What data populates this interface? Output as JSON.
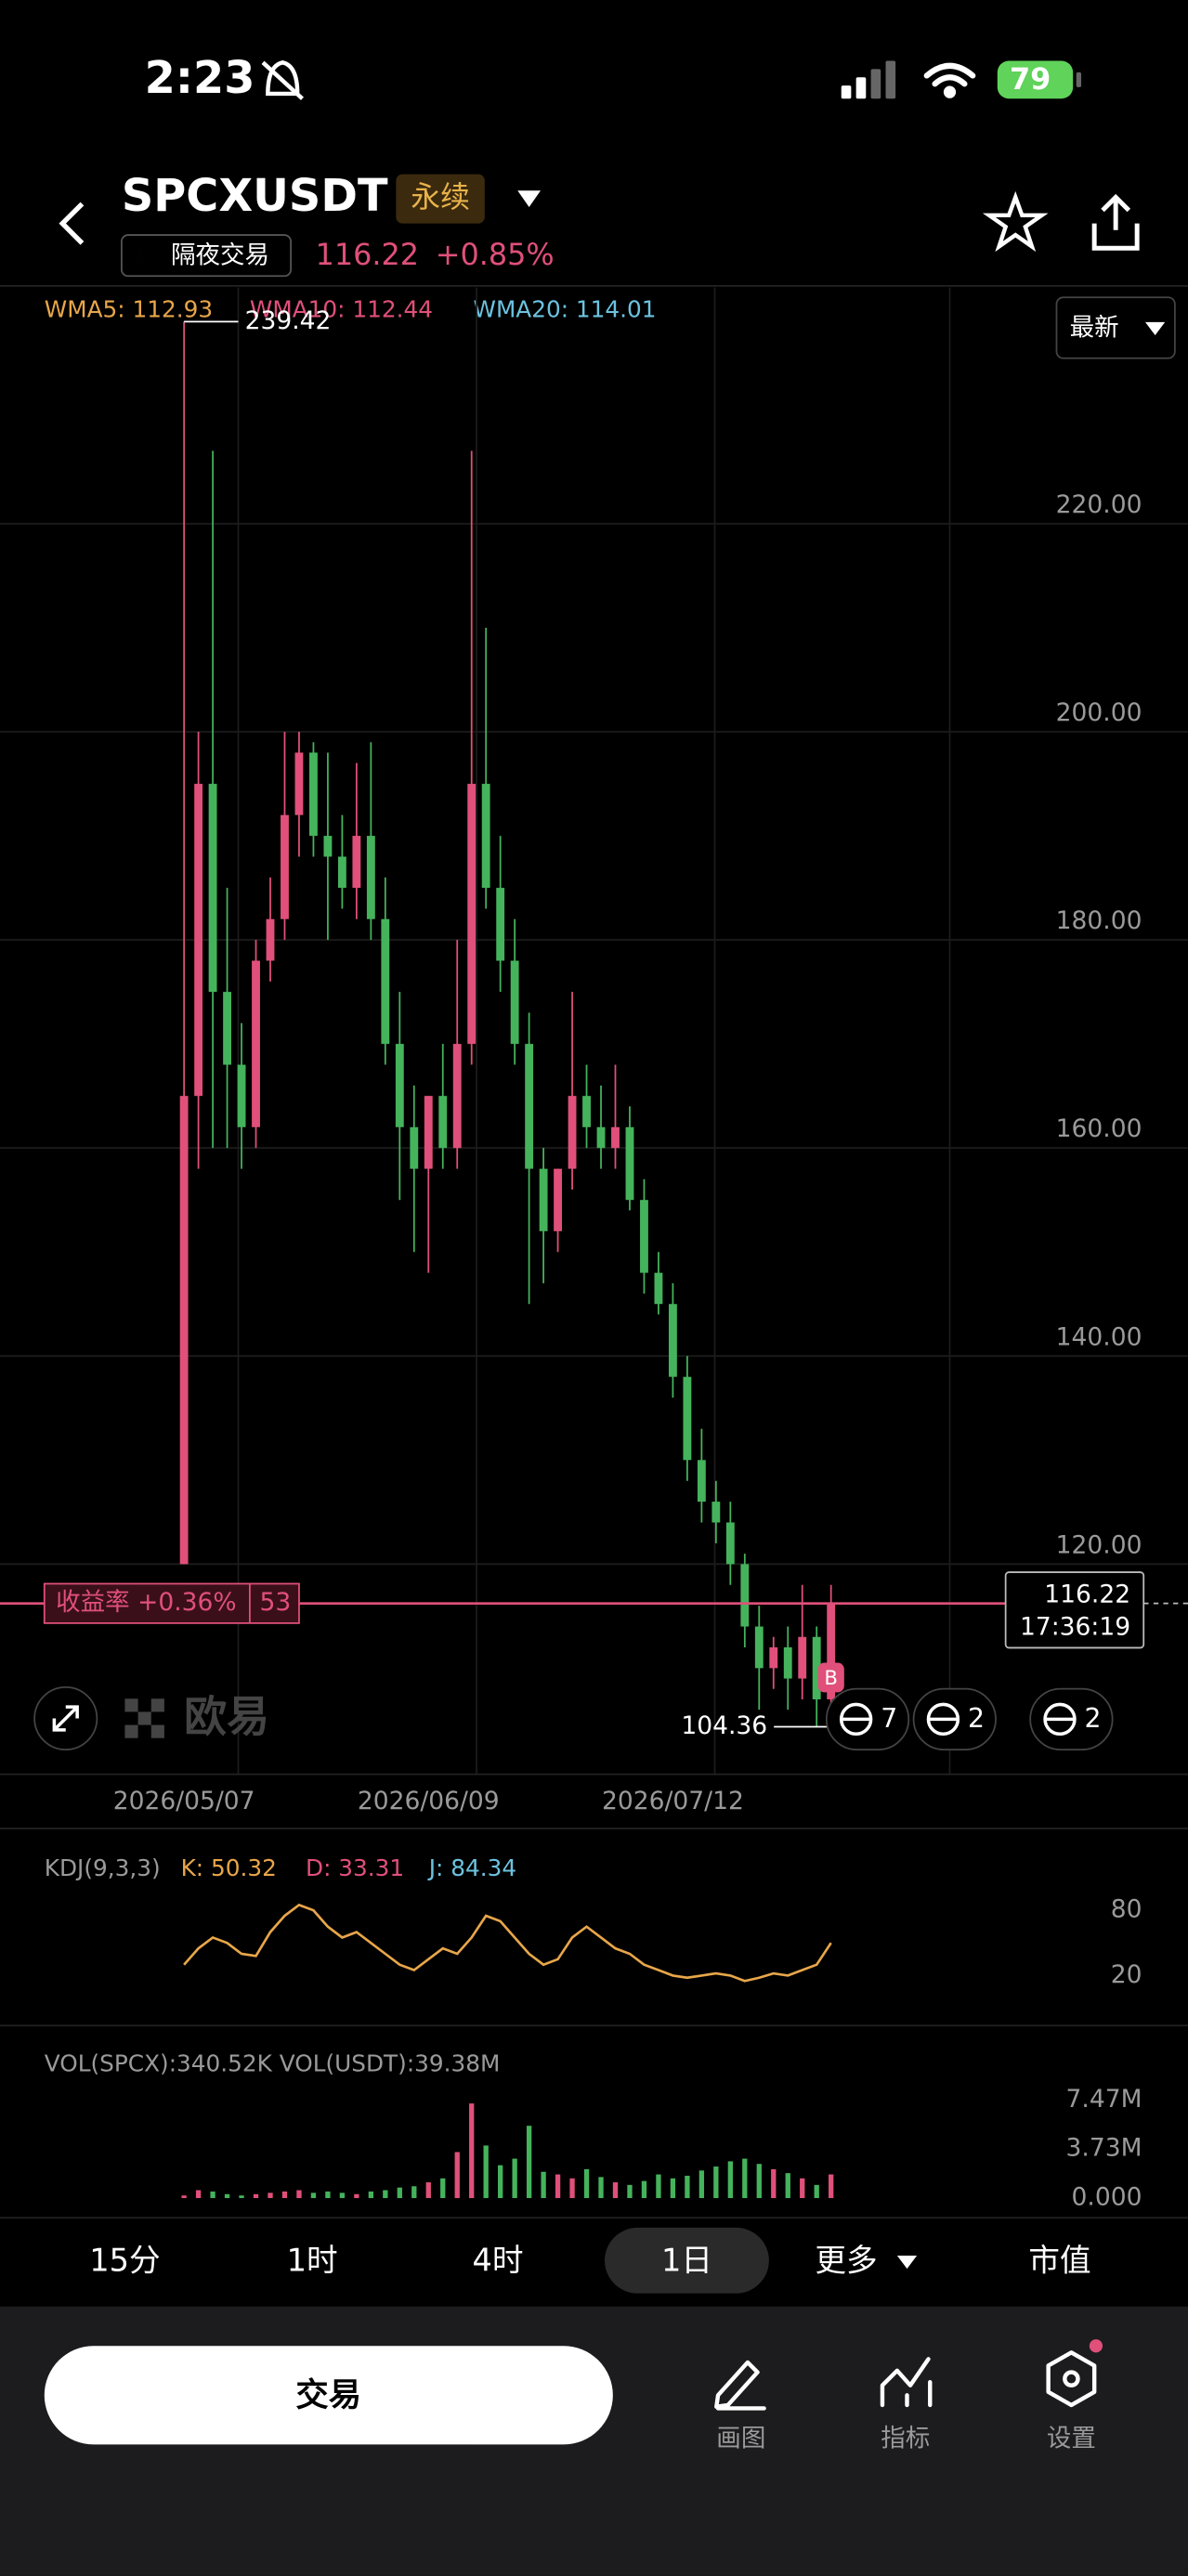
{
  "status_bar": {
    "time": "2:23",
    "battery": "79"
  },
  "header": {
    "symbol": "SPCXUSDT",
    "tag": "永续",
    "session": "隔夜交易",
    "price": "116.22",
    "change": "+0.85%"
  },
  "legend": [
    "WMA5: 112.93",
    "WMA10: 112.44",
    "WMA20: 114.01"
  ],
  "view_mode": "最新",
  "chart_data": {
    "type": "candlestick",
    "categories": [
      "2026/05/07",
      null,
      null,
      null,
      null,
      null,
      null,
      null,
      null,
      null,
      null,
      null,
      null,
      null,
      null,
      null,
      null,
      "2026/06/09",
      null,
      null,
      null,
      null,
      null,
      null,
      null,
      null,
      null,
      null,
      null,
      null,
      null,
      null,
      null,
      null,
      "2026/07/12",
      null,
      null,
      null,
      null,
      null,
      null,
      null,
      null,
      null,
      null,
      null
    ],
    "open": [
      120,
      165,
      195,
      175,
      168,
      162,
      178,
      182,
      192,
      198,
      190,
      188,
      185,
      190,
      182,
      170,
      162,
      158,
      165,
      160,
      170,
      195,
      185,
      178,
      170,
      158,
      152,
      158,
      165,
      162,
      160,
      162,
      155,
      148,
      145,
      138,
      130,
      126,
      124,
      120,
      114,
      110,
      112,
      109,
      113,
      107
    ],
    "high": [
      239.42,
      200,
      227,
      185,
      172,
      180,
      186,
      200,
      200,
      199,
      198,
      192,
      197,
      199,
      186,
      175,
      166,
      165,
      170,
      180,
      227,
      210,
      190,
      182,
      173,
      160,
      158,
      175,
      168,
      166,
      168,
      164,
      157,
      150,
      147,
      140,
      133,
      128,
      126,
      121,
      116,
      113,
      114,
      118,
      114,
      118
    ],
    "low": [
      120,
      158,
      160,
      160,
      158,
      160,
      176,
      180,
      188,
      188,
      180,
      183,
      182,
      180,
      168,
      155,
      150,
      148,
      158,
      158,
      168,
      183,
      175,
      168,
      145,
      147,
      150,
      156,
      160,
      158,
      158,
      154,
      146,
      144,
      136,
      128,
      124,
      122,
      118,
      112,
      106,
      108,
      106,
      107,
      104.36,
      106
    ],
    "close": [
      165,
      195,
      175,
      168,
      162,
      178,
      182,
      192,
      198,
      190,
      188,
      185,
      190,
      182,
      170,
      162,
      158,
      165,
      160,
      170,
      195,
      185,
      178,
      170,
      158,
      152,
      158,
      165,
      162,
      160,
      162,
      155,
      148,
      145,
      138,
      130,
      126,
      124,
      120,
      114,
      110,
      112,
      109,
      113,
      107,
      116.22
    ],
    "up_color": "#e0507a",
    "down_color": "#45b35c",
    "ylim": [
      99.8,
      242.7
    ],
    "yticks": [
      {
        "value": 120,
        "label": "120.00"
      },
      {
        "value": 140,
        "label": "140.00"
      },
      {
        "value": 160,
        "label": "160.00"
      },
      {
        "value": 180,
        "label": "180.00"
      },
      {
        "value": 200,
        "label": "200.00"
      },
      {
        "value": 220,
        "label": "220.00"
      }
    ],
    "grid": true,
    "max_marker": 239.42,
    "min_marker": 104.36,
    "last_price": 116.22,
    "countdown": "17:36:19",
    "pnl_label": "收益率 +0.36%",
    "pnl_count": "53",
    "buy_marker": "B",
    "kdj": {
      "type": "line",
      "title": "KDJ(9,3,3)",
      "k_label": "K: 50.32",
      "d_label": "D: 33.31",
      "j_label": "J: 84.34",
      "color": "#e8a64a",
      "values": [
        30,
        45,
        55,
        50,
        40,
        38,
        60,
        75,
        85,
        80,
        65,
        55,
        60,
        50,
        40,
        30,
        25,
        35,
        45,
        40,
        55,
        75,
        70,
        55,
        40,
        30,
        35,
        55,
        65,
        55,
        45,
        40,
        30,
        25,
        20,
        18,
        20,
        22,
        20,
        15,
        18,
        22,
        20,
        25,
        30,
        50
      ],
      "ylim": [
        -20,
        110
      ],
      "yticks": [
        20,
        80
      ]
    },
    "volume": {
      "type": "bar",
      "title": "VOL(SPCX):340.52K VOL(USDT):39.38M",
      "values": [
        0.2,
        0.6,
        0.5,
        0.3,
        0.2,
        0.3,
        0.4,
        0.5,
        0.6,
        0.4,
        0.5,
        0.4,
        0.3,
        0.5,
        0.6,
        0.8,
        0.9,
        1.2,
        1.5,
        3.5,
        7.2,
        4.0,
        2.5,
        3.0,
        5.5,
        2.0,
        1.8,
        1.5,
        2.2,
        1.6,
        1.2,
        1.0,
        1.3,
        1.8,
        1.5,
        1.7,
        2.1,
        2.4,
        2.8,
        3.0,
        2.6,
        2.2,
        1.9,
        1.5,
        1.0,
        1.8
      ],
      "ylim": [
        0,
        8.5
      ],
      "yticks": [
        {
          "value": 0,
          "label": "0.000"
        },
        {
          "value": 3.73,
          "label": "3.73M"
        },
        {
          "value": 7.47,
          "label": "7.47M"
        }
      ]
    }
  },
  "badges": [
    "7",
    "2",
    "2"
  ],
  "watermark": "欧易",
  "timeframes": [
    "15分",
    "1时",
    "4时",
    "1日",
    "更多",
    "市值"
  ],
  "active_timeframe": 3,
  "trade_button": "交易",
  "tools": [
    "画图",
    "指标",
    "设置"
  ]
}
